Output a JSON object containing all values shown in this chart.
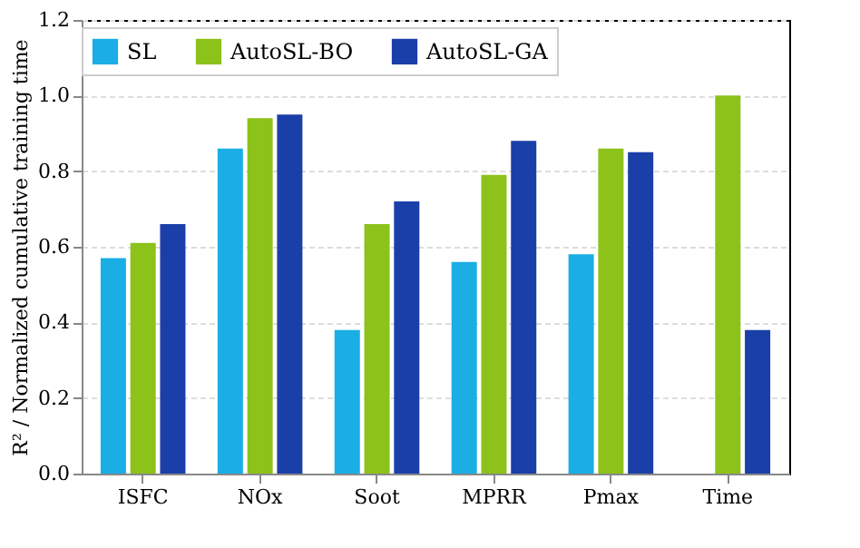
{
  "chart_data": {
    "type": "bar",
    "ylabel": "R² / Normalized cumulative training time",
    "categories": [
      "ISFC",
      "NOx",
      "Soot",
      "MPRR",
      "Pmax",
      "Time"
    ],
    "series": [
      {
        "name": "SL",
        "color": "#1aaee5",
        "values": [
          0.57,
          0.86,
          0.38,
          0.56,
          0.58,
          null
        ]
      },
      {
        "name": "AutoSL-BO",
        "color": "#8cc21a",
        "values": [
          0.61,
          0.94,
          0.66,
          0.79,
          0.86,
          1.0
        ]
      },
      {
        "name": "AutoSL-GA",
        "color": "#1a3fa8",
        "values": [
          0.66,
          0.95,
          0.72,
          0.88,
          0.85,
          0.38
        ]
      }
    ],
    "ylim": [
      0,
      1.2
    ],
    "yticks": [
      {
        "value": 0,
        "label": "0.0"
      },
      0.2,
      0.4,
      0.6,
      0.8,
      {
        "value": 1.0,
        "label": "1.0"
      },
      1.2
    ],
    "grid": "y",
    "legend": "top"
  }
}
